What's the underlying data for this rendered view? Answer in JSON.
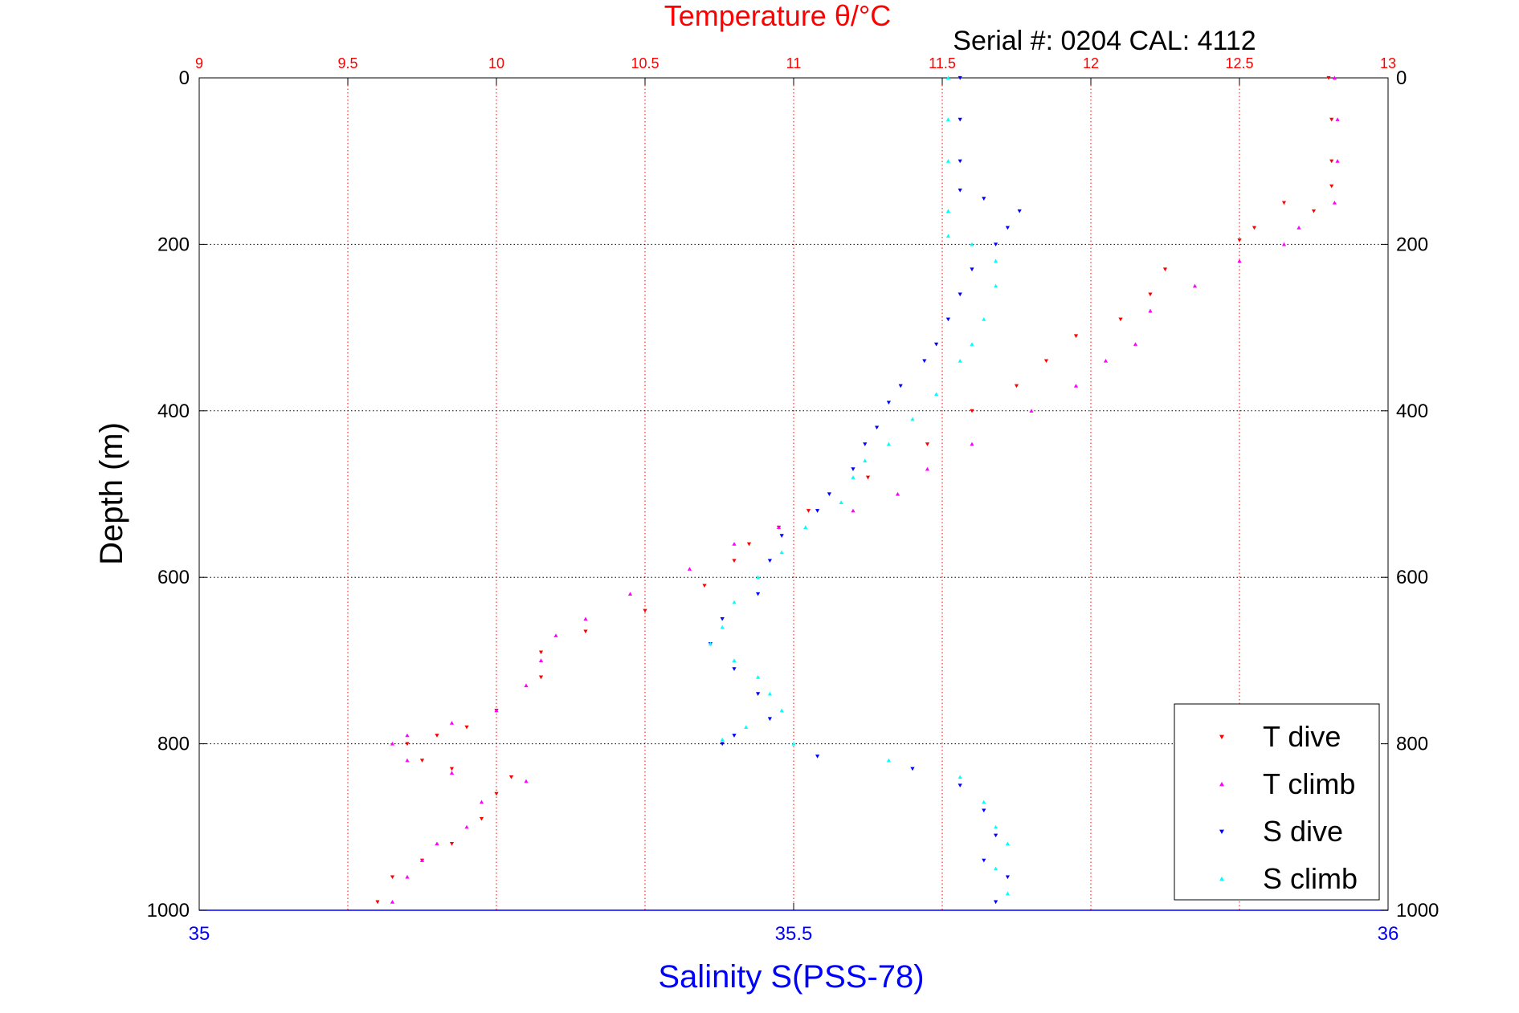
{
  "chart_data": {
    "type": "scatter",
    "title": "Temperature θ/°C",
    "subtitle": "Serial #: 0204  CAL: 4112",
    "ylabel": "Depth (m)",
    "xlabel": "Salinity S(PSS-78)",
    "ylim": [
      0,
      1000
    ],
    "y_reversed": true,
    "temperature_axis": {
      "position": "top",
      "range": [
        9,
        13
      ],
      "ticks": [
        "9",
        "9.5",
        "10",
        "10.5",
        "11",
        "11.5",
        "12",
        "12.5",
        "13"
      ],
      "color": "#ff0000"
    },
    "salinity_axis": {
      "position": "bottom",
      "range": [
        35,
        36
      ],
      "ticks": [
        "35",
        "35.5",
        "36"
      ],
      "color": "#0000ff"
    },
    "depth_ticks": [
      "0",
      "200",
      "400",
      "600",
      "800",
      "1000"
    ],
    "grid": true,
    "legend_position": "bottom-right",
    "series": [
      {
        "name": "T dive",
        "axis": "temperature",
        "color": "#ff0000",
        "marker": "triangle-down",
        "points": [
          [
            12.8,
            0
          ],
          [
            12.81,
            50
          ],
          [
            12.81,
            100
          ],
          [
            12.81,
            130
          ],
          [
            12.65,
            150
          ],
          [
            12.75,
            160
          ],
          [
            12.55,
            180
          ],
          [
            12.5,
            195
          ],
          [
            12.25,
            230
          ],
          [
            12.2,
            260
          ],
          [
            12.1,
            290
          ],
          [
            11.95,
            310
          ],
          [
            11.85,
            340
          ],
          [
            11.75,
            370
          ],
          [
            11.6,
            400
          ],
          [
            11.45,
            440
          ],
          [
            11.25,
            480
          ],
          [
            11.05,
            520
          ],
          [
            10.95,
            540
          ],
          [
            10.85,
            560
          ],
          [
            10.8,
            580
          ],
          [
            10.7,
            610
          ],
          [
            10.5,
            640
          ],
          [
            10.3,
            665
          ],
          [
            10.15,
            690
          ],
          [
            10.15,
            720
          ],
          [
            10.0,
            760
          ],
          [
            9.9,
            780
          ],
          [
            9.8,
            790
          ],
          [
            9.7,
            800
          ],
          [
            9.75,
            820
          ],
          [
            9.85,
            830
          ],
          [
            10.05,
            840
          ],
          [
            10.0,
            860
          ],
          [
            9.95,
            890
          ],
          [
            9.85,
            920
          ],
          [
            9.75,
            940
          ],
          [
            9.65,
            960
          ],
          [
            9.6,
            990
          ]
        ]
      },
      {
        "name": "T climb",
        "axis": "temperature",
        "color": "#ff00ff",
        "marker": "triangle-up",
        "points": [
          [
            12.82,
            0
          ],
          [
            12.83,
            50
          ],
          [
            12.83,
            100
          ],
          [
            12.82,
            150
          ],
          [
            12.7,
            180
          ],
          [
            12.65,
            200
          ],
          [
            12.5,
            220
          ],
          [
            12.35,
            250
          ],
          [
            12.2,
            280
          ],
          [
            12.15,
            320
          ],
          [
            12.05,
            340
          ],
          [
            11.95,
            370
          ],
          [
            11.8,
            400
          ],
          [
            11.6,
            440
          ],
          [
            11.45,
            470
          ],
          [
            11.35,
            500
          ],
          [
            11.2,
            520
          ],
          [
            10.95,
            540
          ],
          [
            10.8,
            560
          ],
          [
            10.65,
            590
          ],
          [
            10.45,
            620
          ],
          [
            10.3,
            650
          ],
          [
            10.2,
            670
          ],
          [
            10.15,
            700
          ],
          [
            10.1,
            730
          ],
          [
            10.0,
            760
          ],
          [
            9.85,
            775
          ],
          [
            9.7,
            790
          ],
          [
            9.65,
            800
          ],
          [
            9.7,
            820
          ],
          [
            9.85,
            835
          ],
          [
            10.1,
            845
          ],
          [
            9.95,
            870
          ],
          [
            9.9,
            900
          ],
          [
            9.8,
            920
          ],
          [
            9.75,
            940
          ],
          [
            9.7,
            960
          ],
          [
            9.65,
            990
          ]
        ]
      },
      {
        "name": "S dive",
        "axis": "salinity",
        "color": "#0000ff",
        "marker": "triangle-down",
        "points": [
          [
            35.64,
            0
          ],
          [
            35.64,
            50
          ],
          [
            35.64,
            100
          ],
          [
            35.64,
            135
          ],
          [
            35.66,
            145
          ],
          [
            35.69,
            160
          ],
          [
            35.68,
            180
          ],
          [
            35.67,
            200
          ],
          [
            35.65,
            230
          ],
          [
            35.64,
            260
          ],
          [
            35.63,
            290
          ],
          [
            35.62,
            320
          ],
          [
            35.61,
            340
          ],
          [
            35.59,
            370
          ],
          [
            35.58,
            390
          ],
          [
            35.57,
            420
          ],
          [
            35.56,
            440
          ],
          [
            35.55,
            470
          ],
          [
            35.53,
            500
          ],
          [
            35.52,
            520
          ],
          [
            35.49,
            550
          ],
          [
            35.48,
            580
          ],
          [
            35.47,
            620
          ],
          [
            35.44,
            650
          ],
          [
            35.43,
            680
          ],
          [
            35.45,
            710
          ],
          [
            35.47,
            740
          ],
          [
            35.48,
            770
          ],
          [
            35.45,
            790
          ],
          [
            35.44,
            800
          ],
          [
            35.52,
            815
          ],
          [
            35.6,
            830
          ],
          [
            35.64,
            850
          ],
          [
            35.66,
            880
          ],
          [
            35.67,
            910
          ],
          [
            35.66,
            940
          ],
          [
            35.68,
            960
          ],
          [
            35.67,
            990
          ]
        ]
      },
      {
        "name": "S climb",
        "axis": "salinity",
        "color": "#00ffff",
        "marker": "triangle-up",
        "points": [
          [
            35.63,
            0
          ],
          [
            35.63,
            50
          ],
          [
            35.63,
            100
          ],
          [
            35.63,
            160
          ],
          [
            35.63,
            190
          ],
          [
            35.65,
            200
          ],
          [
            35.67,
            220
          ],
          [
            35.67,
            250
          ],
          [
            35.66,
            290
          ],
          [
            35.65,
            320
          ],
          [
            35.64,
            340
          ],
          [
            35.62,
            380
          ],
          [
            35.6,
            410
          ],
          [
            35.58,
            440
          ],
          [
            35.56,
            460
          ],
          [
            35.55,
            480
          ],
          [
            35.54,
            510
          ],
          [
            35.51,
            540
          ],
          [
            35.49,
            570
          ],
          [
            35.47,
            600
          ],
          [
            35.45,
            630
          ],
          [
            35.44,
            660
          ],
          [
            35.43,
            680
          ],
          [
            35.45,
            700
          ],
          [
            35.47,
            720
          ],
          [
            35.48,
            740
          ],
          [
            35.49,
            760
          ],
          [
            35.46,
            780
          ],
          [
            35.44,
            795
          ],
          [
            35.5,
            800
          ],
          [
            35.58,
            820
          ],
          [
            35.64,
            840
          ],
          [
            35.66,
            870
          ],
          [
            35.67,
            900
          ],
          [
            35.68,
            920
          ],
          [
            35.67,
            950
          ],
          [
            35.68,
            980
          ]
        ]
      }
    ]
  }
}
